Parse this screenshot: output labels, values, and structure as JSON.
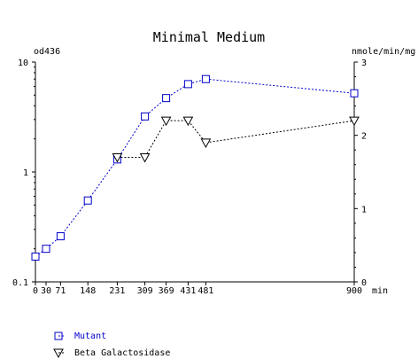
{
  "chart_data": {
    "type": "line",
    "title": "Minimal Medium",
    "y_left_label": "od436",
    "y_right_label": "nmole/min/mg",
    "x_unit_label": "min",
    "y_left_scale": "log",
    "y_left_range": [
      0.1,
      10
    ],
    "y_left_ticks": [
      "10",
      "1",
      "0.1"
    ],
    "y_left_tick_values": [
      10,
      1,
      0.1
    ],
    "y_right_range": [
      0,
      3
    ],
    "y_right_ticks": [
      "3",
      "2",
      "1",
      "0"
    ],
    "y_right_tick_values": [
      3,
      2,
      1,
      0
    ],
    "x_range": [
      0,
      900
    ],
    "x_ticks": [
      "0",
      "30",
      "71",
      "148",
      "231",
      "309",
      "369",
      "431",
      "481",
      "900"
    ],
    "x_tick_values": [
      0,
      30,
      71,
      148,
      231,
      309,
      369,
      431,
      481,
      900
    ],
    "grid": false,
    "legend_position": "bottom-left",
    "series": [
      {
        "name": "Mutant",
        "axis": "left",
        "marker": "square",
        "color": "#0000cc",
        "x": [
          0,
          30,
          71,
          148,
          231,
          309,
          369,
          431,
          481,
          900
        ],
        "y": [
          0.17,
          0.2,
          0.26,
          0.55,
          1.3,
          3.2,
          4.7,
          6.3,
          7.0,
          5.2
        ]
      },
      {
        "name": "Beta Galactosidase",
        "axis": "right",
        "marker": "triangle-down",
        "color": "#000000",
        "x": [
          231,
          309,
          369,
          431,
          481,
          900
        ],
        "y": [
          1.7,
          1.7,
          2.2,
          2.2,
          1.9,
          2.2
        ]
      }
    ]
  }
}
